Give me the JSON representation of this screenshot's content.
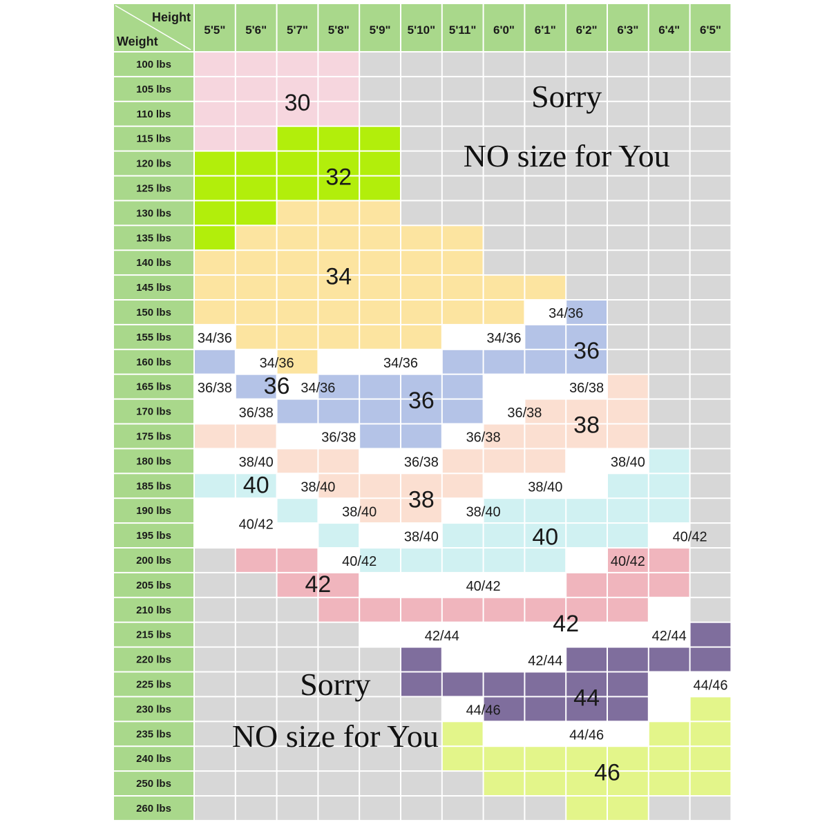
{
  "chart_data": {
    "type": "table",
    "corner": {
      "top_label": "Height",
      "bottom_label": "Weight"
    },
    "columns": [
      "5'5\"",
      "5'6\"",
      "5'7\"",
      "5'8\"",
      "5'9\"",
      "5'10\"",
      "5'11\"",
      "6'0\"",
      "6'1\"",
      "6'2\"",
      "6'3\"",
      "6'4\"",
      "6'5\""
    ],
    "rows": [
      "100 lbs",
      "105 lbs",
      "110 lbs",
      "115 lbs",
      "120 lbs",
      "125 lbs",
      "130 lbs",
      "135 lbs",
      "140 lbs",
      "145 lbs",
      "150 lbs",
      "155 lbs",
      "160 lbs",
      "165 lbs",
      "170 lbs",
      "175 lbs",
      "180 lbs",
      "185 lbs",
      "190 lbs",
      "195 lbs",
      "200 lbs",
      "205 lbs",
      "210 lbs",
      "215 lbs",
      "220 lbs",
      "225 lbs",
      "230 lbs",
      "235 lbs",
      "240 lbs",
      "250 lbs",
      "260 lbs"
    ],
    "cell_codes": [
      "AAAAXXXXXXXXX",
      "AAAAXXXXXXXXX",
      "AAAAXXXXXXXXX",
      "AABBBXXXXXXXX",
      "BBBBBXXXXXXXX",
      "BBBBBXXXXXXXX",
      "BBCCCXXXXXXXX",
      "BCCCCCCXXXXXX",
      "CCCCCCCXXXXXX",
      "CCCCCCCCCXXXX",
      "CCCCCCCCWDXXX",
      "WCCCCCWWDDXXX",
      "DWCWWWDDDDXXX",
      "WDWDDDDWWWEXX",
      "WWDDDDDWEEEXX",
      "EEWWDDWEEEEXX",
      "WWEEWWEEEWWFX",
      "FFWEEEEWWWFFX",
      "WWFWEEWFFFFFX",
      "WWWFWWFFFFFWX",
      "XGGWFFFFFWGGX",
      "XXGGWWWWWGGGX",
      "XXXGGGGGGGGWX",
      "XXXXWWWWWWWWH",
      "XXXXXHWWWHHHH",
      "XXXXXHHHHHHWW",
      "XXXXXXWHHHHWI",
      "XXXXXXIWWWWII",
      "XXXXXXIIIIIII",
      "XXXXXXXIIIIII",
      "XXXXXXXXXIIXX"
    ],
    "size_labels": [
      {
        "text": "30",
        "col": 2.0,
        "row": 1.5,
        "big": true
      },
      {
        "text": "32",
        "col": 3.0,
        "row": 4.5,
        "big": true
      },
      {
        "text": "34",
        "col": 3.0,
        "row": 8.5,
        "big": true
      },
      {
        "text": "34/36",
        "col": 0.0,
        "row": 11.0,
        "big": false
      },
      {
        "text": "34/36",
        "col": 7.0,
        "row": 11.0,
        "big": false
      },
      {
        "text": "34/36",
        "col": 8.5,
        "row": 10.0,
        "big": false
      },
      {
        "text": "36",
        "col": 9.0,
        "row": 11.5,
        "big": true
      },
      {
        "text": "34/36",
        "col": 1.5,
        "row": 12.0,
        "big": false
      },
      {
        "text": "34/36",
        "col": 4.5,
        "row": 12.0,
        "big": false
      },
      {
        "text": "36/38",
        "col": 0.0,
        "row": 13.0,
        "big": false
      },
      {
        "text": "36",
        "col": 1.5,
        "row": 13.0,
        "big": true,
        "size": 26
      },
      {
        "text": "34/36",
        "col": 2.5,
        "row": 13.0,
        "big": false
      },
      {
        "text": "36",
        "col": 5.0,
        "row": 13.5,
        "big": true
      },
      {
        "text": "36/38",
        "col": 9.0,
        "row": 13.0,
        "big": false
      },
      {
        "text": "36/38",
        "col": 1.0,
        "row": 14.0,
        "big": false
      },
      {
        "text": "36/38",
        "col": 7.5,
        "row": 14.0,
        "big": false
      },
      {
        "text": "38",
        "col": 9.0,
        "row": 14.5,
        "big": true
      },
      {
        "text": "36/38",
        "col": 3.0,
        "row": 15.0,
        "big": false
      },
      {
        "text": "36/38",
        "col": 6.5,
        "row": 15.0,
        "big": false
      },
      {
        "text": "38/40",
        "col": 1.0,
        "row": 16.0,
        "big": false
      },
      {
        "text": "36/38",
        "col": 5.0,
        "row": 16.0,
        "big": false
      },
      {
        "text": "38/40",
        "col": 10.0,
        "row": 16.0,
        "big": false
      },
      {
        "text": "40",
        "col": 1.0,
        "row": 17.0,
        "big": true,
        "size": 26
      },
      {
        "text": "38/40",
        "col": 2.5,
        "row": 17.0,
        "big": false
      },
      {
        "text": "38/40",
        "col": 8.0,
        "row": 17.0,
        "big": false
      },
      {
        "text": "38",
        "col": 5.0,
        "row": 17.5,
        "big": true
      },
      {
        "text": "38/40",
        "col": 3.5,
        "row": 18.0,
        "big": false
      },
      {
        "text": "38/40",
        "col": 6.5,
        "row": 18.0,
        "big": false
      },
      {
        "text": "40/42",
        "col": 1.0,
        "row": 18.5,
        "big": false
      },
      {
        "text": "40",
        "col": 8.0,
        "row": 19.0,
        "big": true
      },
      {
        "text": "38/40",
        "col": 5.0,
        "row": 19.0,
        "big": false
      },
      {
        "text": "40/42",
        "col": 11.5,
        "row": 19.0,
        "big": false
      },
      {
        "text": "40/42",
        "col": 3.5,
        "row": 20.0,
        "big": false
      },
      {
        "text": "40/42",
        "col": 10.0,
        "row": 20.0,
        "big": false
      },
      {
        "text": "42",
        "col": 2.5,
        "row": 21.0,
        "big": true,
        "size": 26
      },
      {
        "text": "40/42",
        "col": 6.5,
        "row": 21.0,
        "big": false
      },
      {
        "text": "42",
        "col": 8.5,
        "row": 22.5,
        "big": true
      },
      {
        "text": "42/44",
        "col": 5.5,
        "row": 23.0,
        "big": false
      },
      {
        "text": "42/44",
        "col": 11.0,
        "row": 23.0,
        "big": false
      },
      {
        "text": "42/44",
        "col": 8.0,
        "row": 24.0,
        "big": false
      },
      {
        "text": "44/46",
        "col": 12.0,
        "row": 25.0,
        "big": false
      },
      {
        "text": "44",
        "col": 9.0,
        "row": 25.5,
        "big": true
      },
      {
        "text": "44/46",
        "col": 6.5,
        "row": 26.0,
        "big": false
      },
      {
        "text": "44/46",
        "col": 9.0,
        "row": 27.0,
        "big": false
      },
      {
        "text": "46",
        "col": 9.5,
        "row": 28.5,
        "big": true
      }
    ],
    "notices": [
      {
        "lines": [
          "Sorry",
          "NO size for You"
        ],
        "col": 9.0,
        "rows": [
          2.2,
          4.6
        ]
      },
      {
        "lines": [
          "Sorry",
          "NO size for You"
        ],
        "col": 3.4,
        "rows": [
          25.9,
          28.0
        ]
      }
    ]
  },
  "colors": {
    "header_green": "#a9d88b",
    "no_size_gray": "#d7d7d7",
    "A": "#f6d6de",
    "B": "#b2ee0b",
    "C": "#fce4a0",
    "D": "#b4c3e7",
    "E": "#fbdfd1",
    "F": "#d0f1f2",
    "G": "#f0b5bd",
    "H": "#7f6e9d",
    "I": "#e3f58a",
    "W": "#ffffff",
    "X": "#d7d7d7"
  }
}
